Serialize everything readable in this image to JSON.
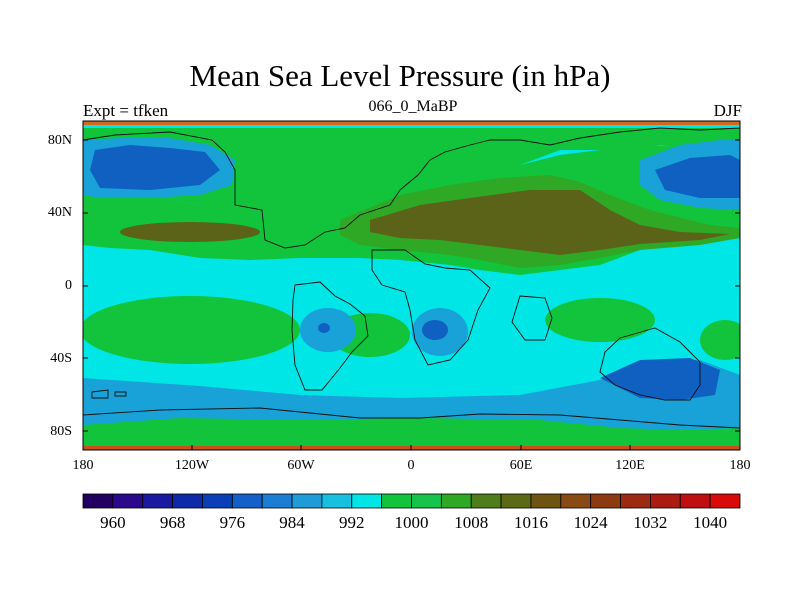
{
  "title": "Mean Sea Level Pressure (in hPa)",
  "left_label": "Expt = tfken",
  "center_label": "066_0_MaBP",
  "right_label": "DJF",
  "y_ticks": [
    "80N",
    "40N",
    "0",
    "40S",
    "80S"
  ],
  "x_ticks": [
    "180",
    "120W",
    "60W",
    "0",
    "60E",
    "120E",
    "180"
  ],
  "colorbar": {
    "labels": [
      "960",
      "968",
      "976",
      "984",
      "992",
      "1000",
      "1008",
      "1016",
      "1024",
      "1032",
      "1040"
    ],
    "colors": [
      "#21005f",
      "#2a0a8a",
      "#1a1aa0",
      "#0f2aa8",
      "#0a3fb8",
      "#1460c8",
      "#1b7ed4",
      "#1f9cd8",
      "#18c0e0",
      "#00e6e6",
      "#11c43c",
      "#17c44a",
      "#2fa826",
      "#4f7d1c",
      "#5c6a15",
      "#6e5412",
      "#8a4a14",
      "#8c3a12",
      "#9c2a12",
      "#aa1c12",
      "#bf0f10",
      "#d80a0a"
    ]
  },
  "map": {
    "x_range": [
      "180",
      "180"
    ],
    "y_range": [
      "90S",
      "90N"
    ],
    "colors": {
      "ocean_low": "#00e6e6",
      "low": "#18a2d8",
      "very_low": "#0f60c0",
      "high": "#11c43c",
      "higher": "#2fa826",
      "highest": "#5a6318"
    }
  }
}
